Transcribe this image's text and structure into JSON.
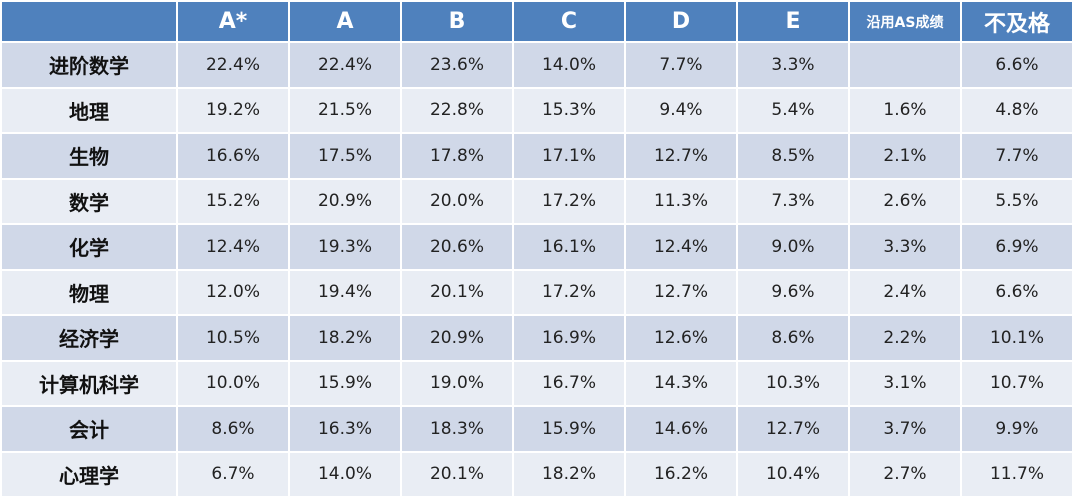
{
  "chart_data": {
    "type": "table",
    "columns": [
      "A*",
      "A",
      "B",
      "C",
      "D",
      "E",
      "沿用AS成绩",
      "不及格"
    ],
    "rows": [
      {
        "subject": "进阶数学",
        "values": [
          "22.4%",
          "22.4%",
          "23.6%",
          "14.0%",
          "7.7%",
          "3.3%",
          "",
          "6.6%"
        ]
      },
      {
        "subject": "地理",
        "values": [
          "19.2%",
          "21.5%",
          "22.8%",
          "15.3%",
          "9.4%",
          "5.4%",
          "1.6%",
          "4.8%"
        ]
      },
      {
        "subject": "生物",
        "values": [
          "16.6%",
          "17.5%",
          "17.8%",
          "17.1%",
          "12.7%",
          "8.5%",
          "2.1%",
          "7.7%"
        ]
      },
      {
        "subject": "数学",
        "values": [
          "15.2%",
          "20.9%",
          "20.0%",
          "17.2%",
          "11.3%",
          "7.3%",
          "2.6%",
          "5.5%"
        ]
      },
      {
        "subject": "化学",
        "values": [
          "12.4%",
          "19.3%",
          "20.6%",
          "16.1%",
          "12.4%",
          "9.0%",
          "3.3%",
          "6.9%"
        ]
      },
      {
        "subject": "物理",
        "values": [
          "12.0%",
          "19.4%",
          "20.1%",
          "17.2%",
          "12.7%",
          "9.6%",
          "2.4%",
          "6.6%"
        ]
      },
      {
        "subject": "经济学",
        "values": [
          "10.5%",
          "18.2%",
          "20.9%",
          "16.9%",
          "12.6%",
          "8.6%",
          "2.2%",
          "10.1%"
        ]
      },
      {
        "subject": "计算机科学",
        "values": [
          "10.0%",
          "15.9%",
          "19.0%",
          "16.7%",
          "14.3%",
          "10.3%",
          "3.1%",
          "10.7%"
        ]
      },
      {
        "subject": "会计",
        "values": [
          "8.6%",
          "16.3%",
          "18.3%",
          "15.9%",
          "14.6%",
          "12.7%",
          "3.7%",
          "9.9%"
        ]
      },
      {
        "subject": "心理学",
        "values": [
          "6.7%",
          "14.0%",
          "20.1%",
          "18.2%",
          "16.2%",
          "10.4%",
          "2.7%",
          "11.7%"
        ]
      }
    ]
  },
  "colors": {
    "header_bg": "#4f81bd",
    "header_text": "#ffffff",
    "row_band_dark": "#d0d8e8",
    "row_band_light": "#e9edf4"
  }
}
